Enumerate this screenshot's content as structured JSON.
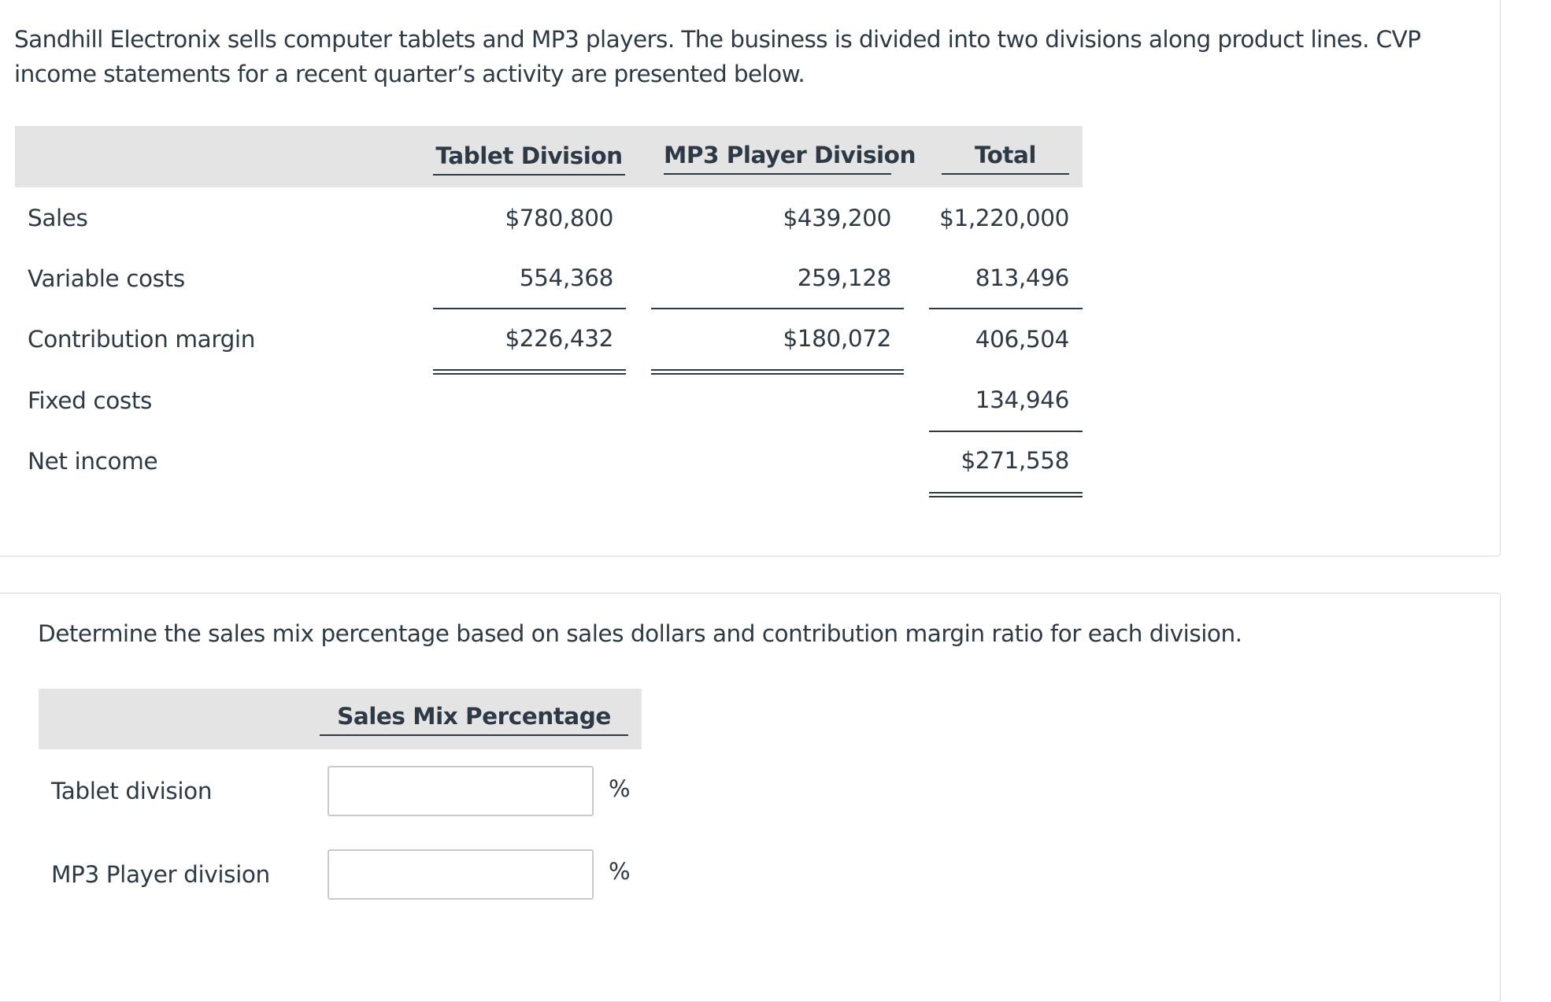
{
  "intro_text": "Sandhill Electronix sells computer tablets and MP3 players. The business is divided into two divisions along product lines. CVP income statements for a recent quarter’s activity are presented below.",
  "cvp_table": {
    "headers": {
      "tablet": "Tablet Division",
      "mp3": "MP3 Player Division",
      "total": "Total"
    },
    "rows": {
      "sales": {
        "label": "Sales",
        "tablet": "$780,800",
        "mp3": "$439,200",
        "total": "$1,220,000"
      },
      "variable_costs": {
        "label": "Variable costs",
        "tablet": "554,368",
        "mp3": "259,128",
        "total": "813,496"
      },
      "contribution_margin": {
        "label": "Contribution margin",
        "tablet": "$226,432",
        "mp3": "$180,072",
        "total": "406,504"
      },
      "fixed_costs": {
        "label": "Fixed costs",
        "total": "134,946"
      },
      "net_income": {
        "label": "Net income",
        "total": "$271,558"
      }
    }
  },
  "question_text": "Determine the sales mix percentage based on sales dollars and contribution margin ratio for each division.",
  "sales_mix": {
    "header": "Sales Mix Percentage",
    "rows": {
      "tablet": {
        "label": "Tablet division",
        "value": "",
        "unit": "%"
      },
      "mp3": {
        "label": "MP3 Player division",
        "value": "",
        "unit": "%"
      }
    }
  }
}
